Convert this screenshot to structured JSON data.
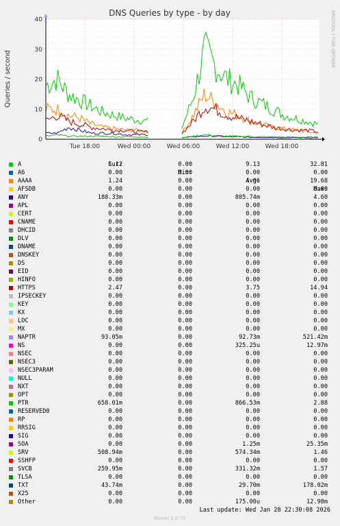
{
  "chart_data": {
    "type": "line",
    "title": "DNS Queries by type - by day",
    "ylabel": "Queries / second",
    "ylim": [
      0,
      40
    ],
    "yticks": [
      0,
      10,
      20,
      30,
      40
    ],
    "xticks": [
      "Tue 18:00",
      "Wed 00:00",
      "Wed 06:00",
      "Wed 12:00",
      "Wed 18:00"
    ],
    "grid": true,
    "watermark": "RRDTOOL / TOBI OETIKER",
    "series_traced": [
      {
        "name": "A",
        "approx_values": [
          18,
          20,
          15,
          13,
          11,
          9,
          8,
          7,
          6.5,
          6,
          0,
          0,
          4,
          14,
          30,
          24,
          20,
          18,
          14,
          12,
          10,
          8,
          7,
          6,
          5
        ]
      },
      {
        "name": "AAAA",
        "approx_values": [
          10,
          10,
          8,
          7,
          5,
          4,
          3.5,
          3,
          3,
          2.5,
          0,
          0,
          2,
          8,
          15,
          12,
          9,
          8,
          6,
          5,
          4,
          3.5,
          3,
          2.5,
          2
        ]
      },
      {
        "name": "HTTPS",
        "approx_values": [
          6,
          8,
          6,
          5,
          4,
          3.5,
          3,
          3,
          2.5,
          2.5,
          0,
          0,
          2,
          6,
          11,
          10,
          8,
          7,
          6,
          5,
          4,
          3.5,
          3,
          3,
          2.5
        ]
      },
      {
        "name": "ANY",
        "approx_values": [
          2,
          2,
          4,
          3,
          2,
          2,
          2,
          1.5,
          1.5,
          1.5,
          0,
          0,
          0.5,
          0.8,
          1,
          1,
          0.8,
          0.8,
          0.6,
          0.6,
          0.6,
          0.5,
          0.5,
          0.5,
          0.5
        ]
      },
      {
        "name": "PTR",
        "approx_values": [
          1,
          1.5,
          1,
          1,
          1,
          1,
          0.8,
          0.8,
          0.8,
          0.7,
          0,
          0,
          0.5,
          1,
          1.5,
          1.2,
          1,
          1,
          0.9,
          0.8,
          0.8,
          0.7,
          0.7,
          0.7,
          0.7
        ]
      }
    ],
    "legend_headers": {
      "cur": "Cur:",
      "min": "Min:",
      "avg": "Avg:",
      "max": "Max:"
    },
    "legend": [
      {
        "name": "A",
        "color": "#00cc00",
        "cur": "5.12",
        "min": "0.00",
        "avg": "9.13",
        "max": "32.81"
      },
      {
        "name": "A6",
        "color": "#0066b3",
        "cur": "0.00",
        "min": "0.00",
        "avg": "0.00",
        "max": "0.00"
      },
      {
        "name": "AAAA",
        "color": "#ff8000",
        "cur": "1.24",
        "min": "0.00",
        "avg": "4.06",
        "max": "19.68"
      },
      {
        "name": "AFSDB",
        "color": "#ffcc00",
        "cur": "0.00",
        "min": "0.00",
        "avg": "0.00",
        "max": "0.00"
      },
      {
        "name": "ANY",
        "color": "#330099",
        "cur": "188.33m",
        "min": "0.00",
        "avg": "805.74m",
        "max": "4.60"
      },
      {
        "name": "APL",
        "color": "#990099",
        "cur": "0.00",
        "min": "0.00",
        "avg": "0.00",
        "max": "0.00"
      },
      {
        "name": "CERT",
        "color": "#ccff00",
        "cur": "0.00",
        "min": "0.00",
        "avg": "0.00",
        "max": "0.00"
      },
      {
        "name": "CNAME",
        "color": "#ff0000",
        "cur": "0.00",
        "min": "0.00",
        "avg": "0.00",
        "max": "0.00"
      },
      {
        "name": "DHCID",
        "color": "#808080",
        "cur": "0.00",
        "min": "0.00",
        "avg": "0.00",
        "max": "0.00"
      },
      {
        "name": "DLV",
        "color": "#008f00",
        "cur": "0.00",
        "min": "0.00",
        "avg": "0.00",
        "max": "0.00"
      },
      {
        "name": "DNAME",
        "color": "#00487d",
        "cur": "0.00",
        "min": "0.00",
        "avg": "0.00",
        "max": "0.00"
      },
      {
        "name": "DNSKEY",
        "color": "#b35a00",
        "cur": "0.00",
        "min": "0.00",
        "avg": "0.00",
        "max": "0.00"
      },
      {
        "name": "DS",
        "color": "#b38f00",
        "cur": "0.00",
        "min": "0.00",
        "avg": "0.00",
        "max": "0.00"
      },
      {
        "name": "EID",
        "color": "#6b006b",
        "cur": "0.00",
        "min": "0.00",
        "avg": "0.00",
        "max": "0.00"
      },
      {
        "name": "HINFO",
        "color": "#8fb300",
        "cur": "0.00",
        "min": "0.00",
        "avg": "0.00",
        "max": "0.00"
      },
      {
        "name": "HTTPS",
        "color": "#b30000",
        "cur": "2.47",
        "min": "0.00",
        "avg": "3.75",
        "max": "14.94"
      },
      {
        "name": "IPSECKEY",
        "color": "#bebebe",
        "cur": "0.00",
        "min": "0.00",
        "avg": "0.00",
        "max": "0.00"
      },
      {
        "name": "KEY",
        "color": "#80ff80",
        "cur": "0.00",
        "min": "0.00",
        "avg": "0.00",
        "max": "0.00"
      },
      {
        "name": "KX",
        "color": "#80c9ff",
        "cur": "0.00",
        "min": "0.00",
        "avg": "0.00",
        "max": "0.00"
      },
      {
        "name": "LOC",
        "color": "#ffc080",
        "cur": "0.00",
        "min": "0.00",
        "avg": "0.00",
        "max": "0.00"
      },
      {
        "name": "MX",
        "color": "#ffe680",
        "cur": "0.00",
        "min": "0.00",
        "avg": "0.00",
        "max": "0.00"
      },
      {
        "name": "NAPTR",
        "color": "#aa80ff",
        "cur": "93.05m",
        "min": "0.00",
        "avg": "92.73m",
        "max": "521.42m"
      },
      {
        "name": "NS",
        "color": "#ee00cc",
        "cur": "0.00",
        "min": "0.00",
        "avg": "325.25u",
        "max": "12.97m"
      },
      {
        "name": "NSEC",
        "color": "#ff8080",
        "cur": "0.00",
        "min": "0.00",
        "avg": "0.00",
        "max": "0.00"
      },
      {
        "name": "NSEC3",
        "color": "#666600",
        "cur": "0.00",
        "min": "0.00",
        "avg": "0.00",
        "max": "0.00"
      },
      {
        "name": "NSEC3PARAM",
        "color": "#ffbfff",
        "cur": "0.00",
        "min": "0.00",
        "avg": "0.00",
        "max": "0.00"
      },
      {
        "name": "NULL",
        "color": "#00ffcc",
        "cur": "0.00",
        "min": "0.00",
        "avg": "0.00",
        "max": "0.00"
      },
      {
        "name": "NXT",
        "color": "#cc6699",
        "cur": "0.00",
        "min": "0.00",
        "avg": "0.00",
        "max": "0.00"
      },
      {
        "name": "OPT",
        "color": "#999900",
        "cur": "0.00",
        "min": "0.00",
        "avg": "0.00",
        "max": "0.00"
      },
      {
        "name": "PTR",
        "color": "#00cc00",
        "cur": "658.01m",
        "min": "0.00",
        "avg": "866.53m",
        "max": "2.88"
      },
      {
        "name": "RESERVED0",
        "color": "#0066b3",
        "cur": "0.00",
        "min": "0.00",
        "avg": "0.00",
        "max": "0.00"
      },
      {
        "name": "RP",
        "color": "#ff8000",
        "cur": "0.00",
        "min": "0.00",
        "avg": "0.00",
        "max": "0.00"
      },
      {
        "name": "RRSIG",
        "color": "#ffcc00",
        "cur": "0.00",
        "min": "0.00",
        "avg": "0.00",
        "max": "0.00"
      },
      {
        "name": "SIG",
        "color": "#330099",
        "cur": "0.00",
        "min": "0.00",
        "avg": "0.00",
        "max": "0.00"
      },
      {
        "name": "SOA",
        "color": "#990099",
        "cur": "0.00",
        "min": "0.00",
        "avg": "1.25m",
        "max": "25.35m"
      },
      {
        "name": "SRV",
        "color": "#ccff00",
        "cur": "508.94m",
        "min": "0.00",
        "avg": "574.34m",
        "max": "1.46"
      },
      {
        "name": "SSHFP",
        "color": "#ff0000",
        "cur": "0.00",
        "min": "0.00",
        "avg": "0.00",
        "max": "0.00"
      },
      {
        "name": "SVCB",
        "color": "#808080",
        "cur": "259.95m",
        "min": "0.00",
        "avg": "331.32m",
        "max": "1.57"
      },
      {
        "name": "TLSA",
        "color": "#008f00",
        "cur": "0.00",
        "min": "0.00",
        "avg": "0.00",
        "max": "0.00"
      },
      {
        "name": "TXT",
        "color": "#00487d",
        "cur": "43.74m",
        "min": "0.00",
        "avg": "29.70m",
        "max": "178.02m"
      },
      {
        "name": "X25",
        "color": "#b35a00",
        "cur": "0.00",
        "min": "0.00",
        "avg": "0.00",
        "max": "0.00"
      },
      {
        "name": "Other",
        "color": "#b38f00",
        "cur": "0.00",
        "min": "0.00",
        "avg": "175.00u",
        "max": "12.98m"
      }
    ],
    "last_update": "Last update: Wed Jan 28 22:30:08 2026",
    "footer": "Munin 2.0.75"
  }
}
